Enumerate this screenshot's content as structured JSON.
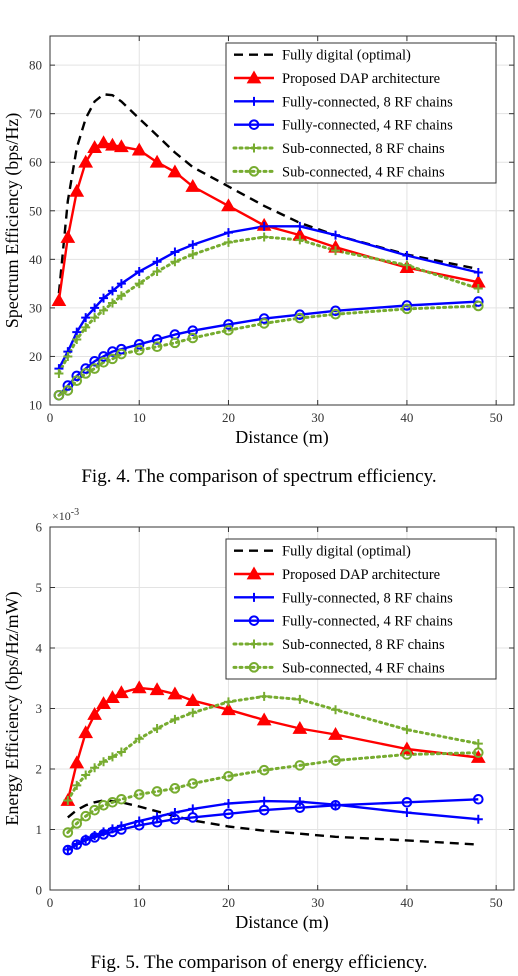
{
  "figures": [
    {
      "caption": "Fig. 4.  The comparison of spectrum efficiency."
    },
    {
      "caption": "Fig. 5.  The comparison of energy efficiency."
    }
  ],
  "chart_data": [
    {
      "type": "line",
      "xlabel": "Distance (m)",
      "ylabel": "Spectrum Efficiency (bps/Hz)",
      "xlim": [
        0,
        52
      ],
      "ylim": [
        10,
        86
      ],
      "xticks": [
        0,
        10,
        20,
        30,
        40,
        50
      ],
      "yticks": [
        10,
        20,
        30,
        40,
        50,
        60,
        70,
        80
      ],
      "grid": true,
      "legend_position": "top-right",
      "series": [
        {
          "name": "Fully digital (optimal)",
          "color": "#000000",
          "dash": "dashed",
          "marker": "none",
          "x": [
            1,
            2,
            3,
            4,
            5,
            6,
            7,
            8,
            10,
            12,
            14,
            16,
            20,
            24,
            28,
            32,
            40,
            48
          ],
          "y": [
            33,
            52,
            63,
            69,
            72.5,
            74,
            73.8,
            72.5,
            69,
            65.5,
            62,
            59,
            55,
            51,
            47.5,
            45,
            41,
            38
          ]
        },
        {
          "name": "Proposed DAP architecture",
          "color": "#ff0000",
          "dash": "solid",
          "marker": "triangle",
          "x": [
            1,
            2,
            3,
            4,
            5,
            6,
            7,
            8,
            10,
            12,
            14,
            16,
            20,
            24,
            28,
            32,
            40,
            48
          ],
          "y": [
            31.5,
            44.5,
            54,
            60,
            63,
            64,
            63.5,
            63.2,
            62.5,
            60,
            58,
            55,
            51,
            47,
            45,
            42.5,
            38.3,
            35.3
          ]
        },
        {
          "name": "Fully-connected, 8 RF chains",
          "color": "#0000ff",
          "dash": "solid",
          "marker": "plus",
          "x": [
            1,
            2,
            3,
            4,
            5,
            6,
            7,
            8,
            10,
            12,
            14,
            16,
            20,
            24,
            28,
            32,
            40,
            48
          ],
          "y": [
            17.5,
            21,
            25,
            28,
            30,
            32,
            33.5,
            35,
            37.5,
            39.5,
            41.5,
            43,
            45.5,
            46.8,
            46.8,
            45,
            40.8,
            37.3
          ]
        },
        {
          "name": "Fully-connected, 4 RF chains",
          "color": "#0000ff",
          "dash": "solid",
          "marker": "circle",
          "x": [
            1,
            2,
            3,
            4,
            5,
            6,
            7,
            8,
            10,
            12,
            14,
            16,
            20,
            24,
            28,
            32,
            40,
            48
          ],
          "y": [
            12,
            14,
            16,
            17.5,
            19,
            20,
            21,
            21.5,
            22.5,
            23.5,
            24.5,
            25.3,
            26.6,
            27.8,
            28.6,
            29.4,
            30.5,
            31.3
          ]
        },
        {
          "name": "Sub-connected, 8 RF chains",
          "color": "#77ac30",
          "dash": "dotted",
          "marker": "plus",
          "x": [
            1,
            2,
            3,
            4,
            5,
            6,
            7,
            8,
            10,
            12,
            14,
            16,
            20,
            24,
            28,
            32,
            40,
            48
          ],
          "y": [
            16.5,
            20,
            23.5,
            26,
            28,
            29.5,
            31,
            32.5,
            35,
            37.5,
            39.5,
            41,
            43.5,
            44.6,
            44,
            41.8,
            38.8,
            34
          ]
        },
        {
          "name": "Sub-connected, 4 RF chains",
          "color": "#77ac30",
          "dash": "dotted",
          "marker": "circle",
          "x": [
            1,
            2,
            3,
            4,
            5,
            6,
            7,
            8,
            10,
            12,
            14,
            16,
            20,
            24,
            28,
            32,
            40,
            48
          ],
          "y": [
            12,
            13,
            15,
            16.5,
            17.5,
            18.8,
            19.5,
            20.5,
            21.3,
            22,
            22.8,
            23.8,
            25.4,
            26.8,
            27.9,
            28.7,
            29.8,
            30.4
          ]
        }
      ]
    },
    {
      "type": "line",
      "xlabel": "Distance (m)",
      "ylabel": "Energy Efficiency (bps/Hz/mW)",
      "y_exponent_label": "×10",
      "y_exponent_power": "-3",
      "xlim": [
        0,
        52
      ],
      "ylim": [
        0,
        6
      ],
      "xticks": [
        0,
        10,
        20,
        30,
        40,
        50
      ],
      "yticks": [
        0,
        1,
        2,
        3,
        4,
        5,
        6
      ],
      "grid": true,
      "legend_position": "top-right",
      "series": [
        {
          "name": "Fully digital (optimal)",
          "color": "#000000",
          "dash": "dashed",
          "marker": "none",
          "x": [
            2,
            3,
            4,
            5,
            6,
            7,
            8,
            10,
            12,
            14,
            16,
            20,
            24,
            28,
            32,
            40,
            48
          ],
          "y": [
            1.2,
            1.32,
            1.4,
            1.45,
            1.48,
            1.47,
            1.45,
            1.38,
            1.3,
            1.22,
            1.15,
            1.05,
            0.98,
            0.93,
            0.88,
            0.82,
            0.75
          ]
        },
        {
          "name": "Proposed DAP architecture",
          "color": "#ff0000",
          "dash": "solid",
          "marker": "triangle",
          "x": [
            2,
            3,
            4,
            5,
            6,
            7,
            8,
            10,
            12,
            14,
            16,
            20,
            24,
            28,
            32,
            40,
            48
          ],
          "y": [
            1.48,
            2.1,
            2.6,
            2.9,
            3.08,
            3.18,
            3.26,
            3.34,
            3.31,
            3.24,
            3.13,
            2.98,
            2.81,
            2.67,
            2.57,
            2.33,
            2.19
          ]
        },
        {
          "name": "Fully-connected, 8 RF chains",
          "color": "#0000ff",
          "dash": "solid",
          "marker": "plus",
          "x": [
            2,
            3,
            4,
            5,
            6,
            7,
            8,
            10,
            12,
            14,
            16,
            20,
            24,
            28,
            32,
            40,
            48
          ],
          "y": [
            0.67,
            0.76,
            0.84,
            0.9,
            0.96,
            1.01,
            1.06,
            1.14,
            1.21,
            1.28,
            1.34,
            1.43,
            1.47,
            1.46,
            1.41,
            1.28,
            1.17
          ]
        },
        {
          "name": "Fully-connected, 4 RF chains",
          "color": "#0000ff",
          "dash": "solid",
          "marker": "circle",
          "x": [
            2,
            3,
            4,
            5,
            6,
            7,
            8,
            10,
            12,
            14,
            16,
            20,
            24,
            28,
            32,
            40,
            48
          ],
          "y": [
            0.66,
            0.75,
            0.82,
            0.87,
            0.92,
            0.96,
            1.0,
            1.07,
            1.12,
            1.17,
            1.2,
            1.26,
            1.32,
            1.36,
            1.4,
            1.45,
            1.5
          ]
        },
        {
          "name": "Sub-connected, 8 RF chains",
          "color": "#77ac30",
          "dash": "dotted",
          "marker": "plus",
          "x": [
            2,
            3,
            4,
            5,
            6,
            7,
            8,
            10,
            12,
            14,
            16,
            20,
            24,
            28,
            32,
            40,
            48
          ],
          "y": [
            1.48,
            1.73,
            1.9,
            2.02,
            2.12,
            2.2,
            2.28,
            2.5,
            2.67,
            2.82,
            2.93,
            3.11,
            3.2,
            3.15,
            2.98,
            2.65,
            2.42
          ]
        },
        {
          "name": "Sub-connected, 4 RF chains",
          "color": "#77ac30",
          "dash": "dotted",
          "marker": "circle",
          "x": [
            2,
            3,
            4,
            5,
            6,
            7,
            8,
            10,
            12,
            14,
            16,
            20,
            24,
            28,
            32,
            40,
            48
          ],
          "y": [
            0.95,
            1.1,
            1.22,
            1.32,
            1.4,
            1.45,
            1.5,
            1.58,
            1.63,
            1.68,
            1.76,
            1.88,
            1.98,
            2.06,
            2.14,
            2.24,
            2.27
          ]
        }
      ]
    }
  ]
}
